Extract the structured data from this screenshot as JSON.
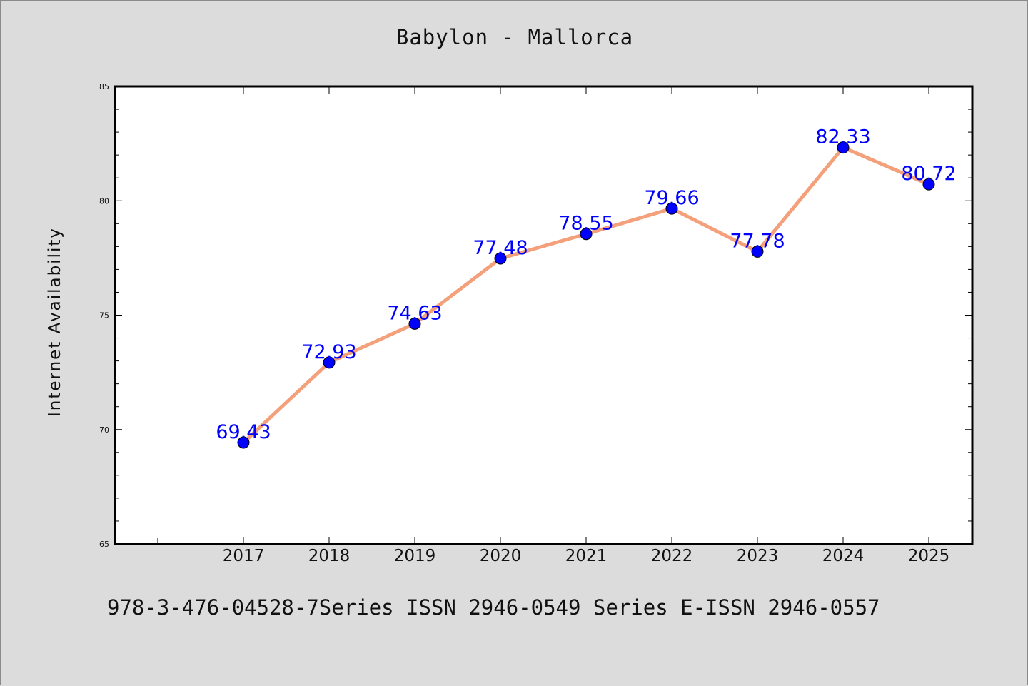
{
  "chart_data": {
    "type": "line",
    "title": "Babylon - Mallorca",
    "xlabel": "",
    "ylabel": "Internet Availability",
    "categories": [
      "2017",
      "2018",
      "2019",
      "2020",
      "2021",
      "2022",
      "2023",
      "2024",
      "2025"
    ],
    "series": [
      {
        "values": [
          69.43,
          72.93,
          74.63,
          77.48,
          78.55,
          79.66,
          77.78,
          82.33,
          80.72
        ]
      }
    ],
    "data_labels": [
      "69.43",
      "72.93",
      "74.63",
      "77.48",
      "78.55",
      "79.66",
      "77.78",
      "82.33",
      "80.72"
    ],
    "ylim": [
      65,
      85
    ],
    "yticks": [
      65,
      70,
      75,
      80,
      85
    ],
    "grid": false,
    "colors": {
      "line": "#f4a07a",
      "marker": "#0000ff",
      "label": "#0000ff",
      "background": "#dcdcdc",
      "plot_bg": "#ffffff"
    }
  },
  "footer_text": "978-3-476-04528-7Series ISSN 2946-0549 Series E-ISSN 2946-0557"
}
